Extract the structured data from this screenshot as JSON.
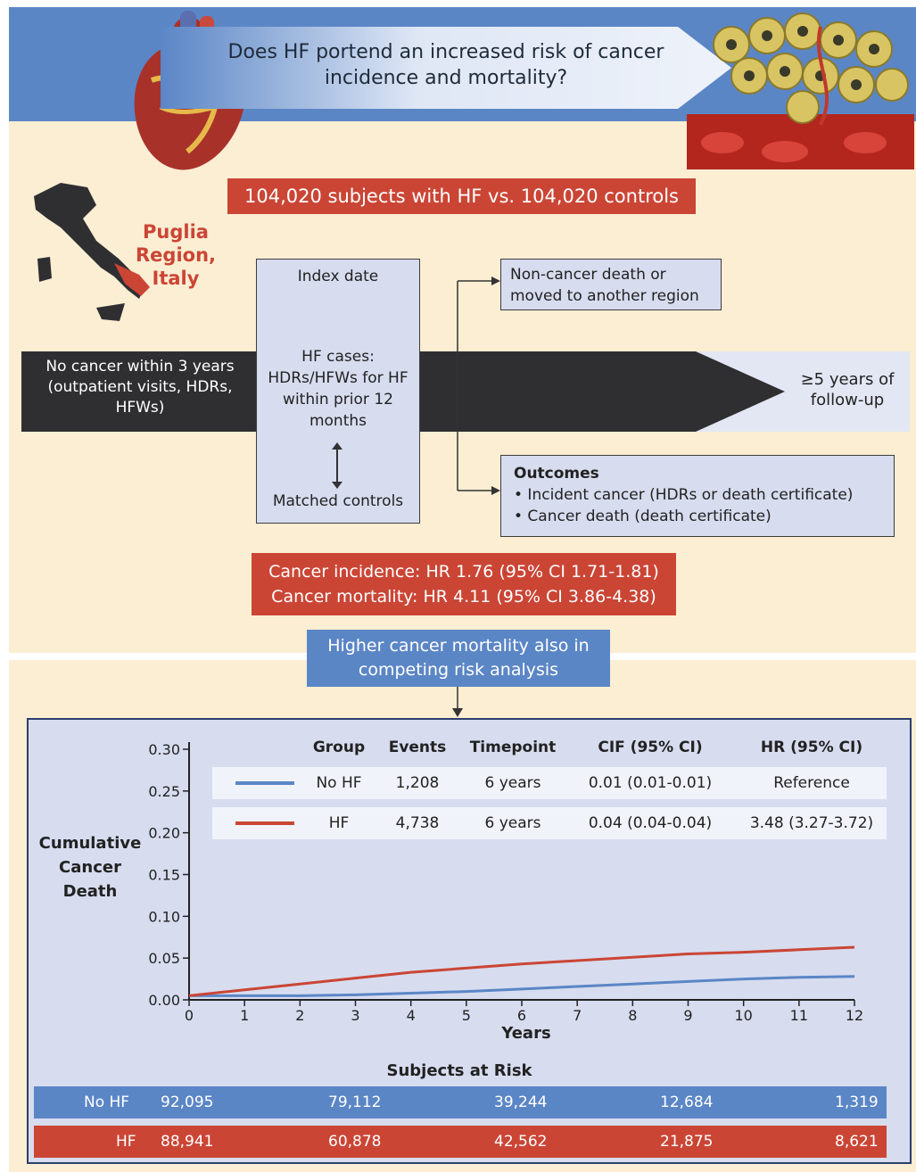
{
  "header": {
    "question": "Does HF portend an increased risk of cancer incidence and mortality?"
  },
  "study": {
    "subjects": "104,020 subjects with HF vs. 104,020 controls",
    "region": "Puglia Region, Italy",
    "baseline": "No cancer within 3 years (outpatient visits, HDRs, HFWs)",
    "index_date": "Index date",
    "hf_cases": "HF cases: HDRs/HFWs for HF within prior 12 months",
    "matched_controls": "Matched controls",
    "followup": "≥5 years of follow-up",
    "noncancer": "Non-cancer death or moved to another region",
    "outcomes_title": "Outcomes",
    "outcome_1": "• Incident cancer (HDRs or death certificate)",
    "outcome_2": "• Cancer death (death certificate)"
  },
  "results": {
    "incidence": "Cancer incidence: HR 1.76 (95% CI 1.71-1.81)",
    "mortality": "Cancer mortality: HR 4.11 (95% CI 3.86-4.38)",
    "competing": "Higher cancer mortality also in competing risk analysis"
  },
  "colors": {
    "no_hf": "#5b86c6",
    "hf": "#cb4535",
    "dark": "#2f2f32"
  },
  "chart_data": {
    "type": "line",
    "ylabel": "Cumulative Cancer Death",
    "xlabel": "Years",
    "xlim": [
      0,
      12
    ],
    "ylim": [
      0,
      0.3
    ],
    "x_ticks": [
      "0",
      "1",
      "2",
      "3",
      "4",
      "5",
      "6",
      "7",
      "8",
      "9",
      "10",
      "11",
      "12"
    ],
    "y_ticks": [
      "0.00",
      "0.05",
      "0.10",
      "0.15",
      "0.20",
      "0.25",
      "0.30"
    ],
    "series": [
      {
        "name": "No HF",
        "color": "#5b86c6",
        "x": [
          0,
          1,
          2,
          3,
          4,
          5,
          6,
          7,
          8,
          9,
          10,
          11,
          12
        ],
        "y": [
          0.005,
          0.005,
          0.005,
          0.006,
          0.008,
          0.01,
          0.013,
          0.016,
          0.019,
          0.022,
          0.025,
          0.027,
          0.028
        ]
      },
      {
        "name": "HF",
        "color": "#cb4535",
        "x": [
          0,
          1,
          2,
          3,
          4,
          5,
          6,
          7,
          8,
          9,
          10,
          11,
          12
        ],
        "y": [
          0.005,
          0.012,
          0.019,
          0.026,
          0.033,
          0.038,
          0.043,
          0.047,
          0.051,
          0.055,
          0.057,
          0.06,
          0.063
        ]
      }
    ],
    "legend_headers": [
      "Group",
      "Events",
      "Timepoint",
      "CIF (95% CI)",
      "HR (95% CI)"
    ],
    "legend_rows": [
      {
        "group": "No HF",
        "events": "1,208",
        "timepoint": "6 years",
        "cif": "0.01 (0.01-0.01)",
        "hr": "Reference"
      },
      {
        "group": "HF",
        "events": "4,738",
        "timepoint": "6 years",
        "cif": "0.04 (0.04-0.04)",
        "hr": "3.48 (3.27-3.72)"
      }
    ],
    "at_risk_title": "Subjects at Risk",
    "at_risk": [
      {
        "group": "No HF",
        "values": [
          "92,095",
          "79,112",
          "39,244",
          "12,684",
          "1,319"
        ]
      },
      {
        "group": "HF",
        "values": [
          "88,941",
          "60,878",
          "42,562",
          "21,875",
          "8,621"
        ]
      }
    ]
  }
}
